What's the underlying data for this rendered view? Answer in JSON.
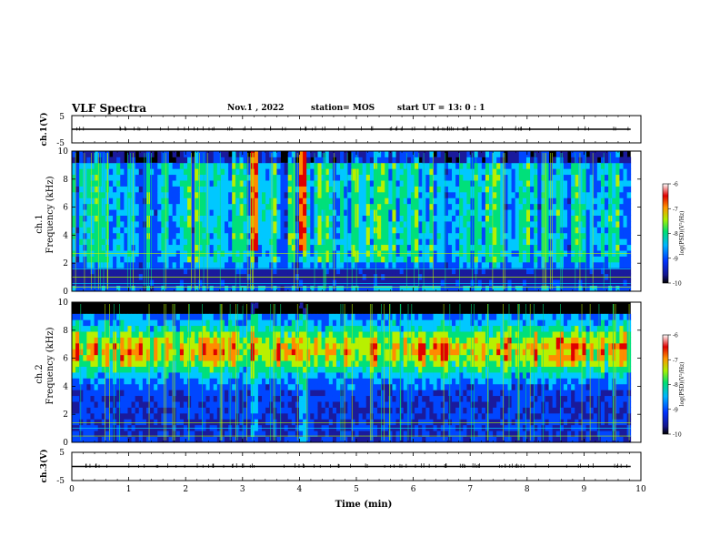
{
  "header": {
    "title": "VLF Spectra",
    "date": "Nov.1  , 2022",
    "station": "station= MOS",
    "start": "start  UT =  13: 0  : 1"
  },
  "chart_data": [
    {
      "type": "line",
      "panel": "ch1-waveform",
      "ylabel": "ch.1(V)",
      "ylim": [
        -5,
        5
      ],
      "yticks": [
        "5",
        "-5"
      ],
      "xlim": [
        0,
        10
      ],
      "series": [
        {
          "x": [
            0,
            9.82
          ],
          "values": [
            0,
            0
          ]
        }
      ]
    },
    {
      "type": "heatmap",
      "panel": "ch1-spectrogram",
      "ylabel_top": "ch.1",
      "ylabel": "Frequency (kHz)",
      "ylim": [
        0,
        10
      ],
      "yticks": [
        "0",
        "2",
        "4",
        "6",
        "8",
        "10"
      ],
      "xlim": [
        0,
        10
      ],
      "data_xmax": 9.82,
      "colorbar": {
        "label": "log(PSD)(V²/Hz)",
        "ticks": [
          "-6",
          "-7",
          "-8",
          "-9",
          "-10"
        ],
        "range": [
          -10,
          -6
        ]
      },
      "colors": [
        "#000000",
        "#1a1a9c",
        "#0046ff",
        "#00c8ff",
        "#00e07a",
        "#b8f000",
        "#ff8c00",
        "#e00000"
      ]
    },
    {
      "type": "heatmap",
      "panel": "ch2-spectrogram",
      "ylabel_top": "ch.2",
      "ylabel": "Frequency (kHz)",
      "ylim": [
        0,
        10
      ],
      "yticks": [
        "0",
        "2",
        "4",
        "6",
        "8",
        "10"
      ],
      "xlim": [
        0,
        10
      ],
      "data_xmax": 9.82,
      "colorbar": {
        "label": "log(PSD)(V²/Hz)",
        "ticks": [
          "-6",
          "-7",
          "-8",
          "-9",
          "-10"
        ],
        "range": [
          -10,
          -6
        ]
      },
      "colors": [
        "#000000",
        "#1a1a9c",
        "#0046ff",
        "#00c8ff",
        "#00e07a",
        "#b8f000",
        "#ff8c00",
        "#e00000"
      ]
    },
    {
      "type": "line",
      "panel": "ch3-waveform",
      "ylabel": "ch.3(V)",
      "ylim": [
        -5,
        5
      ],
      "yticks": [
        "5",
        "-5"
      ],
      "xlim": [
        0,
        10
      ],
      "xlabel": "Time  (min)",
      "xticks": [
        "0",
        "1",
        "2",
        "3",
        "4",
        "5",
        "6",
        "7",
        "8",
        "9",
        "10"
      ],
      "series": [
        {
          "x": [
            0,
            9.82
          ],
          "values": [
            0,
            0
          ]
        }
      ]
    }
  ]
}
